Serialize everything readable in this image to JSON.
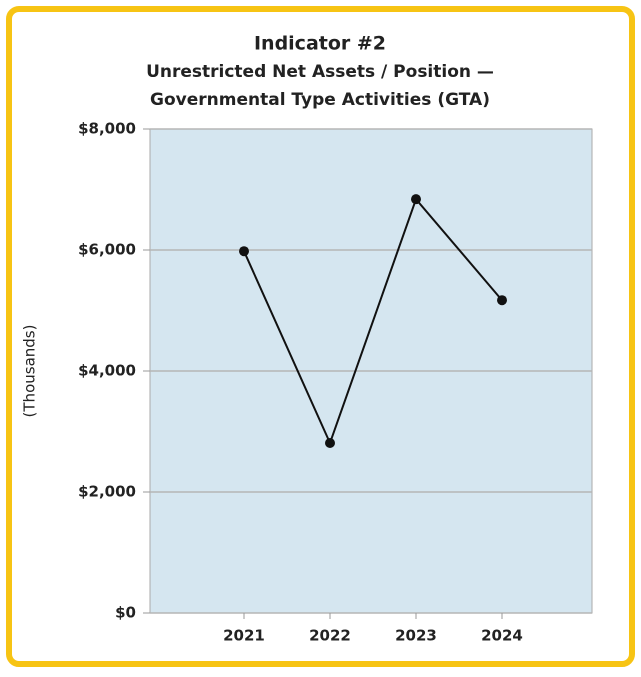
{
  "chart_data": {
    "type": "line",
    "title": "Indicator #2",
    "subtitle": [
      "Unrestricted Net Assets / Position —",
      "Governmental Type Activities (GTA)"
    ],
    "y_label": "(Thousands)",
    "categories": [
      "2021",
      "2022",
      "2023",
      "2024"
    ],
    "series": [
      {
        "name": "Unrestricted Net Assets / Position",
        "color": "#111111",
        "values": [
          5980,
          2810,
          6840,
          5170
        ]
      }
    ],
    "ylim": [
      0,
      8000
    ],
    "yticks": [
      {
        "value": 0,
        "label": "$0"
      },
      {
        "value": 2000,
        "label": "$2,000"
      },
      {
        "value": 4000,
        "label": "$4,000"
      },
      {
        "value": 6000,
        "label": "$6,000"
      },
      {
        "value": 8000,
        "label": "$8,000"
      }
    ],
    "grid": true
  }
}
